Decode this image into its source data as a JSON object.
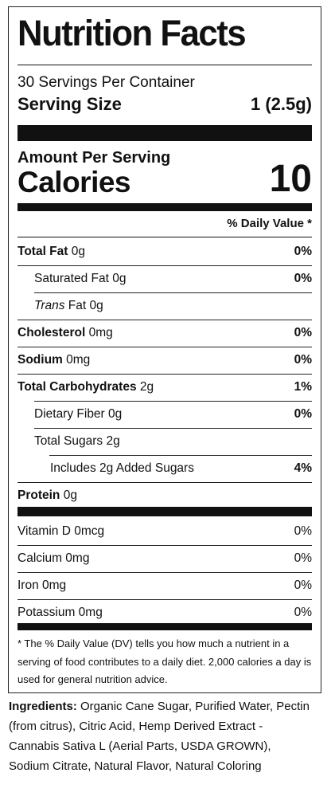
{
  "label": {
    "title": "Nutrition Facts",
    "servings_per_container": "30 Servings Per Container",
    "serving_size_label": "Serving Size",
    "serving_size_value": "1 (2.5g)",
    "amount_per_serving": "Amount Per Serving",
    "calories_label": "Calories",
    "calories_value": "10",
    "daily_value_header": "% Daily Value *",
    "nutrients": [
      {
        "name": "Total Fat",
        "amount": " 0g",
        "dv": "0%"
      },
      {
        "name": "Saturated Fat 0g",
        "dv": "0%"
      },
      {
        "name_italic": "Trans",
        "name_rest": " Fat 0g"
      },
      {
        "name": "Cholesterol",
        "amount": " 0mg",
        "dv": "0%"
      },
      {
        "name": "Sodium",
        "amount": " 0mg",
        "dv": "0%"
      },
      {
        "name": "Total Carbohydrates",
        "amount": " 2g",
        "dv": "1%"
      },
      {
        "name": "Dietary Fiber 0g",
        "dv": "0%"
      },
      {
        "name": "Total Sugars 2g"
      },
      {
        "name": "Includes 2g Added Sugars",
        "dv": "4%"
      },
      {
        "name": "Protein",
        "amount": " 0g"
      }
    ],
    "vitamins": [
      {
        "name": "Vitamin D 0mcg",
        "dv": "0%"
      },
      {
        "name": "Calcium 0mg",
        "dv": "0%"
      },
      {
        "name": "Iron 0mg",
        "dv": "0%"
      },
      {
        "name": "Potassium 0mg",
        "dv": "0%"
      }
    ],
    "footnote": "* The % Daily Value (DV) tells you how much a nutrient in a serving of food contributes to a daily diet. 2,000 calories a day is used for general nutrition advice."
  },
  "ingredients": {
    "heading": "Ingredients:",
    "text": " Organic Cane Sugar, Purified Water, Pectin (from citrus), Citric Acid, Hemp Derived Extract -Cannabis Sativa L (Aerial Parts, USDA GROWN), Sodium Citrate, Natural Flavor, Natural Coloring"
  }
}
